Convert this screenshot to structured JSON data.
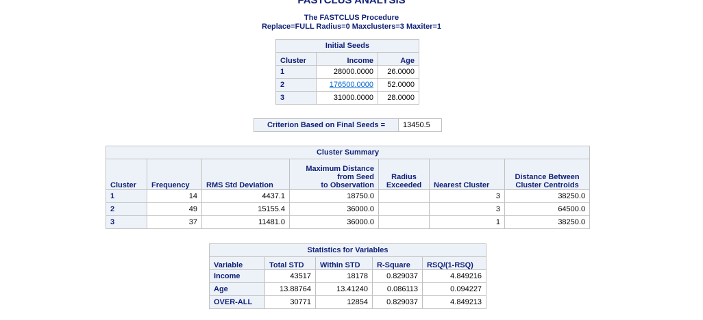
{
  "header": {
    "title": "FASTCLUS ANALYSIS",
    "subtitle": "The FASTCLUS Procedure",
    "options": "Replace=FULL Radius=0 Maxclusters=3 Maxiter=1"
  },
  "initial_seeds": {
    "caption": "Initial Seeds",
    "headers": [
      "Cluster",
      "Income",
      "Age"
    ],
    "rows": [
      [
        "1",
        "28000.0000",
        "26.0000"
      ],
      [
        "2",
        "176500.0000",
        "52.0000"
      ],
      [
        "3",
        "31000.0000",
        "28.0000"
      ]
    ]
  },
  "criterion": {
    "label": "Criterion Based on Final Seeds =",
    "value": "13450.5"
  },
  "cluster_summary": {
    "caption": "Cluster Summary",
    "headers": [
      "Cluster",
      "Frequency",
      "RMS Std Deviation",
      "Maximum Distance\nfrom Seed\nto Observation",
      "Radius\nExceeded",
      "Nearest Cluster",
      "Distance Between\nCluster Centroids"
    ],
    "rows": [
      [
        "1",
        "14",
        "4437.1",
        "18750.0",
        null,
        "3",
        "38250.0"
      ],
      [
        "2",
        "49",
        "15155.4",
        "36000.0",
        null,
        "3",
        "64500.0"
      ],
      [
        "3",
        "37",
        "11481.0",
        "36000.0",
        null,
        "1",
        "38250.0"
      ]
    ]
  },
  "statistics": {
    "caption": "Statistics for Variables",
    "headers": [
      "Variable",
      "Total STD",
      "Within STD",
      "R-Square",
      "RSQ/(1-RSQ)"
    ],
    "rows": [
      [
        "Income",
        "43517",
        "18178",
        "0.829037",
        "4.849216"
      ],
      [
        "Age",
        "13.88764",
        "13.41240",
        "0.086113",
        "0.094227"
      ],
      [
        "OVER-ALL",
        "30771",
        "12854",
        "0.829037",
        "4.849213"
      ]
    ]
  }
}
